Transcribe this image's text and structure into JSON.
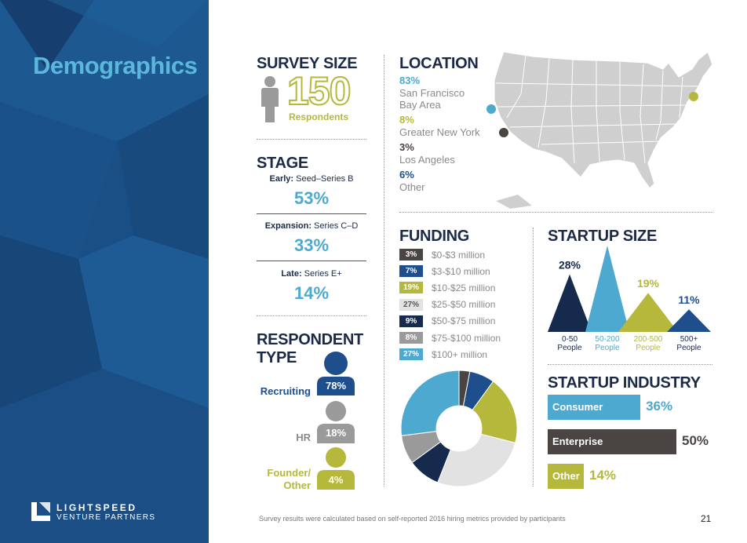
{
  "page_title": "Demographics",
  "logo": {
    "name": "LIGHTSPEED",
    "sub": "VENTURE PARTNERS"
  },
  "survey_size": {
    "title": "SURVEY SIZE",
    "value": "150",
    "label": "Respondents"
  },
  "stage": {
    "title": "STAGE",
    "items": [
      {
        "prefix": "Early:",
        "range": " Seed–Series B",
        "pct": "53%"
      },
      {
        "prefix": "Expansion:",
        "range": " Series C–D",
        "pct": "33%"
      },
      {
        "prefix": "Late:",
        "range": " Series E+",
        "pct": "14%"
      }
    ]
  },
  "respondent_type": {
    "title_line1": "RESPONDENT",
    "title_line2": "TYPE",
    "items": [
      {
        "name": "Recruiting",
        "pct": "78%",
        "color": "#1f4e8c"
      },
      {
        "name": "HR",
        "pct": "18%",
        "color": "#9a9a9a"
      },
      {
        "name_line1": "Founder/",
        "name_line2": "Other",
        "pct": "4%",
        "color": "#b5b83a"
      }
    ]
  },
  "location": {
    "title": "LOCATION",
    "items": [
      {
        "pct": "83%",
        "name_line1": "San Francisco",
        "name_line2": "Bay Area",
        "color": "#4da9d0"
      },
      {
        "pct": "8%",
        "name_line1": "Greater New York",
        "color": "#b5b83a"
      },
      {
        "pct": "3%",
        "name_line1": "Los Angeles",
        "color": "#4a4442"
      },
      {
        "pct": "6%",
        "name_line1": "Other",
        "color": "#1f4e8c"
      }
    ]
  },
  "funding": {
    "title": "FUNDING",
    "items": [
      {
        "pct": "3%",
        "label": "$0-$3 million",
        "color": "#4a4442"
      },
      {
        "pct": "7%",
        "label": "$3-$10 million",
        "color": "#1f4e8c"
      },
      {
        "pct": "19%",
        "label": "$10-$25 million",
        "color": "#b5b83a"
      },
      {
        "pct": "27%",
        "label": "$25-$50 million",
        "color": "#e2e2e2"
      },
      {
        "pct": "9%",
        "label": "$50-$75 million",
        "color": "#152a4d"
      },
      {
        "pct": "8%",
        "label": "$75-$100 million",
        "color": "#9a9a9a"
      },
      {
        "pct": "27%",
        "label": "$100+ million",
        "color": "#4da9d0"
      }
    ]
  },
  "startup_size": {
    "title": "STARTUP SIZE",
    "items": [
      {
        "pct": "28%",
        "line1": "0-50",
        "line2": "People",
        "color": "#152a4d"
      },
      {
        "pct": "42%",
        "line1": "50-200",
        "line2": "People",
        "color": "#4da9d0"
      },
      {
        "pct": "19%",
        "line1": "200-500",
        "line2": "People",
        "color": "#b5b83a"
      },
      {
        "pct": "11%",
        "line1": "500+",
        "line2": "People",
        "color": "#1f4e8c"
      }
    ]
  },
  "startup_industry": {
    "title": "STARTUP INDUSTRY",
    "items": [
      {
        "name": "Consumer",
        "pct": "36%",
        "color": "#4da9d0"
      },
      {
        "name": "Enterprise",
        "pct": "50%",
        "color": "#4a4442"
      },
      {
        "name": "Other",
        "pct": "14%",
        "color": "#b5b83a"
      }
    ]
  },
  "footer_note": "Survey results were calculated based on self-reported 2016 hiring metrics provided by participants",
  "page_number": "21"
}
